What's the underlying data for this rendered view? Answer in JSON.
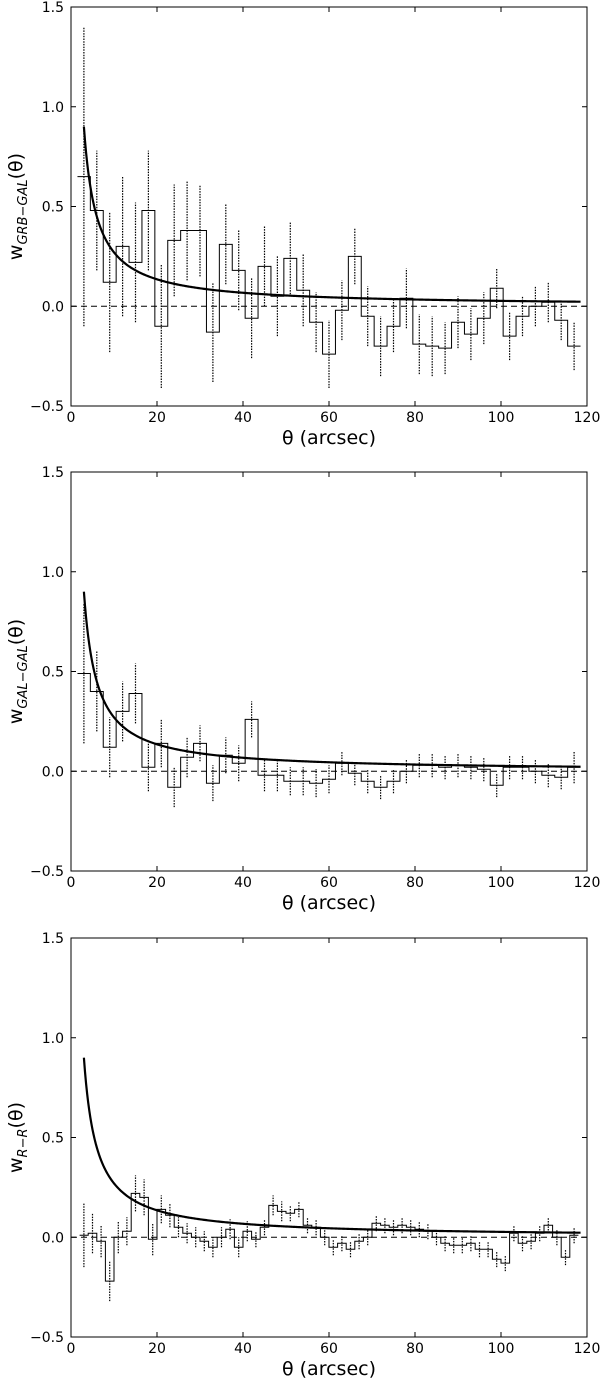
{
  "chart_data": [
    {
      "type": "line",
      "xlabel": "θ (arcsec)",
      "ylabel_main": "w",
      "ylabel_sub": "GRB−GAL",
      "ylabel_arg": "(θ)",
      "xlim": [
        0,
        120
      ],
      "ylim": [
        -0.5,
        1.5
      ],
      "xticks": [
        0,
        20,
        40,
        60,
        80,
        100,
        120
      ],
      "yticks": [
        -0.5,
        0.0,
        0.5,
        1.0,
        1.5
      ],
      "xtick_labels": [
        "0",
        "20",
        "40",
        "60",
        "80",
        "100",
        "120"
      ],
      "ytick_labels": [
        "−0.5",
        "0.0",
        "0.5",
        "1.0",
        "1.5"
      ],
      "bin_width": 3,
      "x": [
        3,
        6,
        9,
        12,
        15,
        18,
        21,
        24,
        27,
        30,
        33,
        36,
        39,
        42,
        45,
        48,
        51,
        54,
        57,
        60,
        63,
        66,
        69,
        72,
        75,
        78,
        81,
        84,
        87,
        90,
        93,
        96,
        99,
        102,
        105,
        108,
        111,
        114,
        117
      ],
      "values": [
        0.65,
        0.48,
        0.12,
        0.3,
        0.22,
        0.48,
        -0.1,
        0.33,
        0.38,
        0.38,
        -0.13,
        0.31,
        0.18,
        -0.06,
        0.2,
        0.05,
        0.24,
        0.08,
        -0.08,
        -0.24,
        -0.02,
        0.25,
        -0.05,
        -0.2,
        -0.1,
        0.04,
        -0.19,
        -0.2,
        -0.21,
        -0.08,
        -0.14,
        -0.06,
        0.09,
        -0.15,
        -0.05,
        0.0,
        0.02,
        -0.07,
        -0.2
      ],
      "errors": [
        0.75,
        0.3,
        0.35,
        0.35,
        0.3,
        0.3,
        0.31,
        0.28,
        0.25,
        0.23,
        0.25,
        0.2,
        0.2,
        0.2,
        0.2,
        0.2,
        0.18,
        0.18,
        0.15,
        0.17,
        0.15,
        0.14,
        0.15,
        0.15,
        0.13,
        0.15,
        0.15,
        0.15,
        0.13,
        0.13,
        0.13,
        0.13,
        0.1,
        0.12,
        0.1,
        0.1,
        0.1,
        0.1,
        0.12
      ],
      "model": {
        "type": "power-law",
        "amplitude": 2.7,
        "exponent": -1,
        "x_start": 3
      },
      "zero_line": true
    },
    {
      "type": "line",
      "xlabel": "θ (arcsec)",
      "ylabel_main": "w",
      "ylabel_sub": "GAL−GAL",
      "ylabel_arg": "(θ)",
      "xlim": [
        0,
        120
      ],
      "ylim": [
        -0.5,
        1.5
      ],
      "xticks": [
        0,
        20,
        40,
        60,
        80,
        100,
        120
      ],
      "yticks": [
        -0.5,
        0.0,
        0.5,
        1.0,
        1.5
      ],
      "xtick_labels": [
        "0",
        "20",
        "40",
        "60",
        "80",
        "100",
        "120"
      ],
      "ytick_labels": [
        "−0.5",
        "0.0",
        "0.5",
        "1.0",
        "1.5"
      ],
      "bin_width": 3,
      "x": [
        3,
        6,
        9,
        12,
        15,
        18,
        21,
        24,
        27,
        30,
        33,
        36,
        39,
        42,
        45,
        48,
        51,
        54,
        57,
        60,
        63,
        66,
        69,
        72,
        75,
        78,
        81,
        84,
        87,
        90,
        93,
        96,
        99,
        102,
        105,
        108,
        111,
        114,
        117
      ],
      "values": [
        0.49,
        0.4,
        0.12,
        0.3,
        0.39,
        0.02,
        0.14,
        -0.08,
        0.07,
        0.14,
        -0.06,
        0.08,
        0.04,
        0.26,
        -0.02,
        -0.02,
        -0.05,
        -0.05,
        -0.06,
        -0.04,
        0.04,
        -0.01,
        -0.05,
        -0.08,
        -0.05,
        0.0,
        0.03,
        0.03,
        0.02,
        0.03,
        0.02,
        0.01,
        -0.07,
        0.02,
        0.02,
        0.0,
        -0.02,
        -0.03,
        0.02
      ],
      "errors": [
        0.35,
        0.2,
        0.15,
        0.15,
        0.15,
        0.12,
        0.12,
        0.1,
        0.1,
        0.09,
        0.09,
        0.09,
        0.09,
        0.09,
        0.08,
        0.08,
        0.07,
        0.07,
        0.07,
        0.07,
        0.06,
        0.06,
        0.06,
        0.06,
        0.06,
        0.06,
        0.06,
        0.06,
        0.06,
        0.06,
        0.06,
        0.06,
        0.06,
        0.06,
        0.06,
        0.06,
        0.06,
        0.06,
        0.08
      ],
      "model": {
        "type": "power-law",
        "amplitude": 2.7,
        "exponent": -1,
        "x_start": 3
      },
      "zero_line": true
    },
    {
      "type": "line",
      "xlabel": "θ (arcsec)",
      "ylabel_main": "w",
      "ylabel_sub": "R−R",
      "ylabel_arg": "(θ)",
      "xlim": [
        0,
        120
      ],
      "ylim": [
        -0.5,
        1.5
      ],
      "xticks": [
        0,
        20,
        40,
        60,
        80,
        100,
        120
      ],
      "yticks": [
        -0.5,
        0.0,
        0.5,
        1.0,
        1.5
      ],
      "xtick_labels": [
        "0",
        "20",
        "40",
        "60",
        "80",
        "100",
        "120"
      ],
      "ytick_labels": [
        "−0.5",
        "0.0",
        "0.5",
        "1.0",
        "1.5"
      ],
      "bin_width": 2,
      "x": [
        3,
        5,
        7,
        9,
        11,
        13,
        15,
        17,
        19,
        21,
        23,
        25,
        27,
        29,
        31,
        33,
        35,
        37,
        39,
        41,
        43,
        45,
        47,
        49,
        51,
        53,
        55,
        57,
        59,
        61,
        63,
        65,
        67,
        69,
        71,
        73,
        75,
        77,
        79,
        81,
        83,
        85,
        87,
        89,
        91,
        93,
        95,
        97,
        99,
        101,
        103,
        105,
        107,
        109,
        111,
        113,
        115,
        117
      ],
      "values": [
        0.01,
        0.02,
        -0.02,
        -0.22,
        0.0,
        0.03,
        0.22,
        0.2,
        -0.01,
        0.14,
        0.11,
        0.05,
        0.02,
        0.0,
        -0.02,
        -0.05,
        0.0,
        0.04,
        -0.05,
        0.03,
        -0.01,
        0.05,
        0.16,
        0.13,
        0.12,
        0.14,
        0.06,
        0.05,
        0.0,
        -0.05,
        -0.03,
        -0.06,
        -0.02,
        0.0,
        0.07,
        0.06,
        0.05,
        0.06,
        0.05,
        0.04,
        0.03,
        0.0,
        -0.03,
        -0.04,
        -0.04,
        -0.03,
        -0.06,
        -0.06,
        -0.11,
        -0.13,
        0.02,
        -0.03,
        -0.02,
        0.02,
        0.06,
        0.0,
        -0.1,
        0.01
      ],
      "errors": [
        0.16,
        0.1,
        0.08,
        0.1,
        0.08,
        0.07,
        0.09,
        0.09,
        0.08,
        0.07,
        0.06,
        0.05,
        0.05,
        0.05,
        0.05,
        0.05,
        0.05,
        0.05,
        0.05,
        0.05,
        0.04,
        0.04,
        0.05,
        0.05,
        0.04,
        0.04,
        0.04,
        0.04,
        0.04,
        0.04,
        0.04,
        0.04,
        0.04,
        0.04,
        0.04,
        0.04,
        0.04,
        0.04,
        0.04,
        0.04,
        0.04,
        0.04,
        0.04,
        0.04,
        0.04,
        0.04,
        0.04,
        0.04,
        0.04,
        0.04,
        0.04,
        0.04,
        0.04,
        0.04,
        0.04,
        0.04,
        0.04,
        0.04
      ],
      "model": {
        "type": "power-law",
        "amplitude": 2.7,
        "exponent": -1,
        "x_start": 3
      },
      "zero_line": true
    }
  ]
}
